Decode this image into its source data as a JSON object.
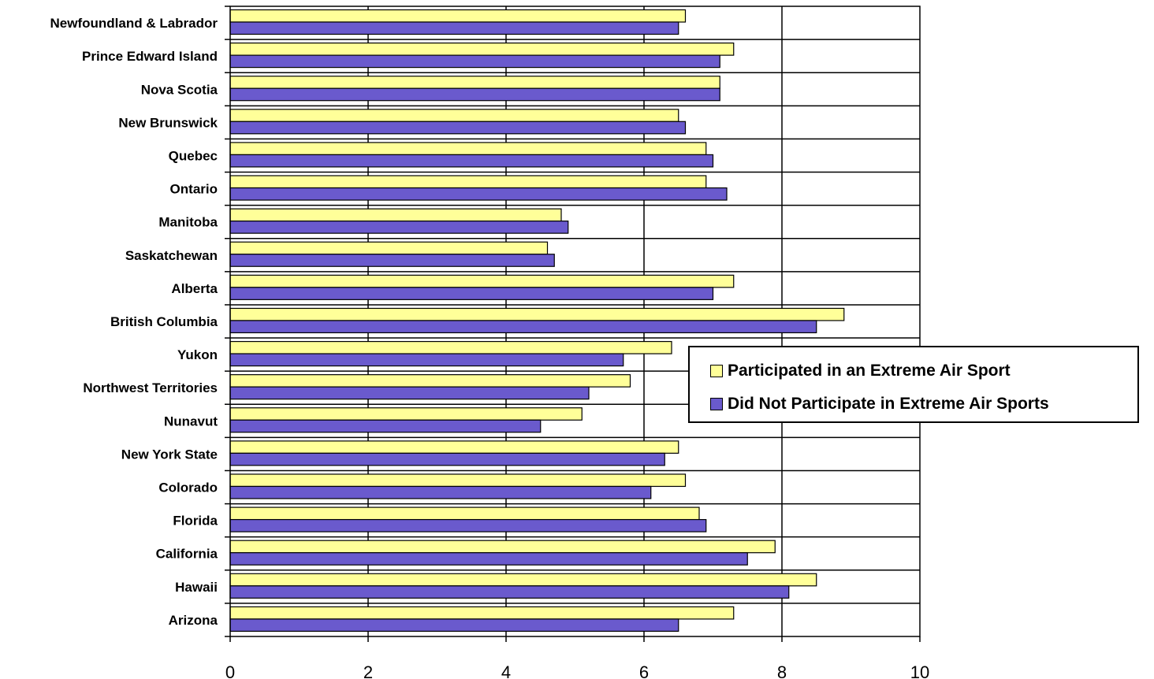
{
  "chart_data": {
    "type": "bar",
    "orientation": "horizontal",
    "categories": [
      "Newfoundland & Labrador",
      "Prince Edward Island",
      "Nova Scotia",
      "New Brunswick",
      "Quebec",
      "Ontario",
      "Manitoba",
      "Saskatchewan",
      "Alberta",
      "British Columbia",
      "Yukon",
      "Northwest Territories",
      "Nunavut",
      "New York State",
      "Colorado",
      "Florida",
      "California",
      "Hawaii",
      "Arizona"
    ],
    "series": [
      {
        "name": "Participated in an Extreme Air Sport",
        "color": "#ffff99",
        "values": [
          6.6,
          7.3,
          7.1,
          6.5,
          6.9,
          6.9,
          4.8,
          4.6,
          7.3,
          8.9,
          6.4,
          5.8,
          5.1,
          6.5,
          6.6,
          6.8,
          7.9,
          8.5,
          7.3
        ]
      },
      {
        "name": "Did Not Participate in Extreme Air Sports",
        "color": "#6a5acd",
        "values": [
          6.5,
          7.1,
          7.1,
          6.6,
          7.0,
          7.2,
          4.9,
          4.7,
          7.0,
          8.5,
          5.7,
          5.2,
          4.5,
          6.3,
          6.1,
          6.9,
          7.5,
          8.1,
          6.5
        ]
      }
    ],
    "xlim": [
      0,
      10
    ],
    "xticks": [
      "0",
      "2",
      "4",
      "6",
      "8",
      "10"
    ],
    "grid": "vertical major gridlines",
    "legend_position": "right",
    "title": "",
    "xlabel": "",
    "ylabel": ""
  }
}
